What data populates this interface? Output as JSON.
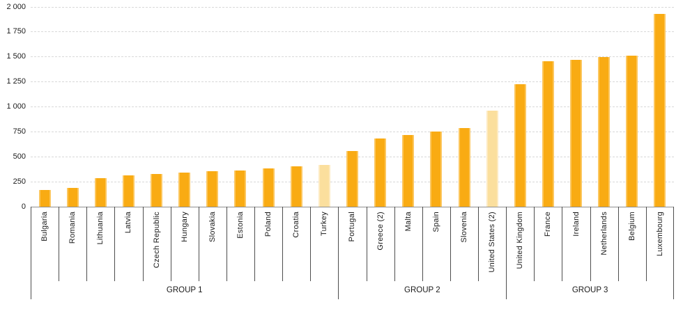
{
  "chart_data": {
    "type": "bar",
    "title": "",
    "xlabel": "",
    "ylabel": "",
    "ylim": [
      0,
      2000
    ],
    "grid": "horizontal-dashed",
    "legend": "none",
    "yticks": [
      {
        "value": 0,
        "label": "0"
      },
      {
        "value": 250,
        "label": "250"
      },
      {
        "value": 500,
        "label": "500"
      },
      {
        "value": 750,
        "label": "750"
      },
      {
        "value": 1000,
        "label": "1 000"
      },
      {
        "value": 1250,
        "label": "1 250"
      },
      {
        "value": 1500,
        "label": "1 500"
      },
      {
        "value": 1750,
        "label": "1 750"
      },
      {
        "value": 2000,
        "label": "2 000"
      }
    ],
    "items": [
      {
        "label": "Bulgaria",
        "value": 170,
        "highlight": false
      },
      {
        "label": "Romania",
        "value": 190,
        "highlight": false
      },
      {
        "label": "Lithuania",
        "value": 285,
        "highlight": false
      },
      {
        "label": "Latvia",
        "value": 315,
        "highlight": false
      },
      {
        "label": "Czech Republic",
        "value": 325,
        "highlight": false
      },
      {
        "label": "Hungary",
        "value": 340,
        "highlight": false
      },
      {
        "label": "Slovakia",
        "value": 355,
        "highlight": false
      },
      {
        "label": "Estonia",
        "value": 360,
        "highlight": false
      },
      {
        "label": "Poland",
        "value": 385,
        "highlight": false
      },
      {
        "label": "Croatia",
        "value": 405,
        "highlight": false
      },
      {
        "label": "Turkey",
        "value": 420,
        "highlight": true
      },
      {
        "label": "Portugal",
        "value": 560,
        "highlight": false
      },
      {
        "label": "Greece (2)",
        "value": 685,
        "highlight": false
      },
      {
        "label": "Malta",
        "value": 720,
        "highlight": false
      },
      {
        "label": "Spain",
        "value": 750,
        "highlight": false
      },
      {
        "label": "Slovenia",
        "value": 790,
        "highlight": false
      },
      {
        "label": "United States (2)",
        "value": 965,
        "highlight": true
      },
      {
        "label": "United Kingdom",
        "value": 1225,
        "highlight": false
      },
      {
        "label": "France",
        "value": 1455,
        "highlight": false
      },
      {
        "label": "Ireland",
        "value": 1470,
        "highlight": false
      },
      {
        "label": "Netherlands",
        "value": 1500,
        "highlight": false
      },
      {
        "label": "Belgium",
        "value": 1515,
        "highlight": false
      },
      {
        "label": "Luxembourg",
        "value": 1930,
        "highlight": false
      }
    ],
    "groups": [
      {
        "label": "GROUP 1",
        "count": 11
      },
      {
        "label": "GROUP 2",
        "count": 6
      },
      {
        "label": "GROUP 3",
        "count": 6
      }
    ],
    "colors": {
      "bar": "#f9ab13",
      "bar_edge": "#fcc75f",
      "highlight_bar": "#fbdf9d",
      "highlight_bar_edge": "#fdeac1",
      "gridline": "#d8d8d8",
      "axis_line": "#8f8f8f",
      "divider": "#4d4d4d",
      "text": "#1a1a1a"
    }
  }
}
